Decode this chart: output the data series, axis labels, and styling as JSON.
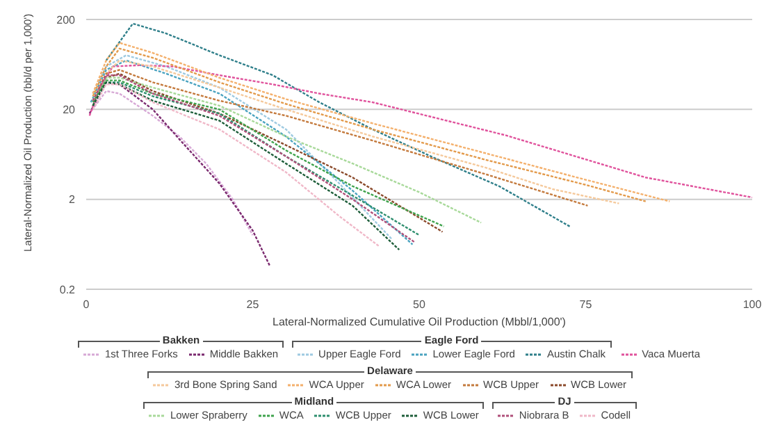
{
  "chart_data": {
    "type": "line",
    "xlabel": "Lateral-Normalized Cumulative Oil Production (Mbbl/1,000')",
    "ylabel": "Lateral-Normalized Oil Production (bbl/d per 1,000')",
    "annotations": [
      "Bakken",
      "Eagle Ford",
      "Delaware",
      "Midland",
      "DJ"
    ],
    "log": "y",
    "xlim": [
      0,
      100
    ],
    "xticks": [
      0,
      25,
      50,
      75,
      100
    ],
    "ylim": [
      0.2,
      200
    ],
    "yticks": [
      0.2,
      2,
      20,
      200
    ],
    "grid": "y",
    "legend": "bottom",
    "line_style": "dashed",
    "marker": "none",
    "series": [
      {
        "name": "1st Three Forks",
        "color": "#d7a9d6",
        "x": [
          0.5,
          3,
          5,
          10,
          14,
          18,
          22,
          25
        ],
        "values": [
          18,
          32,
          30,
          17,
          10,
          5,
          2,
          0.8
        ]
      },
      {
        "name": "Middle Bakken",
        "color": "#7b2a6f",
        "x": [
          0.5,
          3,
          5,
          10,
          14,
          20,
          25,
          27.6
        ],
        "values": [
          18,
          40,
          38,
          20,
          9.3,
          3,
          0.9,
          0.36
        ]
      },
      {
        "name": "Upper Eagle Ford",
        "color": "#9ecae1",
        "x": [
          1,
          3,
          6,
          12,
          20,
          30,
          38,
          45.9
        ],
        "values": [
          30,
          60,
          80,
          60,
          35,
          12,
          3,
          0.72
        ]
      },
      {
        "name": "Lower Eagle Ford",
        "color": "#4aa3c0",
        "x": [
          0.7,
          3,
          6,
          12,
          20,
          30,
          40,
          49
        ],
        "values": [
          24,
          55,
          70,
          50,
          30,
          10,
          2.5,
          0.63
        ]
      },
      {
        "name": "Austin Chalk",
        "color": "#2f7f8a",
        "x": [
          3,
          7,
          12,
          20,
          28,
          35,
          43,
          52,
          62,
          72.6
        ],
        "values": [
          70,
          180,
          140,
          80,
          48,
          24,
          12,
          5.9,
          2.8,
          1
        ]
      },
      {
        "name": "Vaca Muerta",
        "color": "#e0529c",
        "x": [
          0.5,
          2,
          4,
          8,
          13,
          20,
          28,
          35,
          43,
          63,
          84,
          100
        ],
        "values": [
          17,
          35,
          60,
          62,
          60,
          48,
          38,
          30,
          24,
          10.3,
          3.5,
          2.1
        ]
      },
      {
        "name": "3rd Bone Spring Sand",
        "color": "#f5c99b",
        "x": [
          1,
          3,
          5,
          10,
          20,
          30,
          43,
          60,
          70,
          80
        ],
        "values": [
          25,
          50,
          70,
          60,
          35,
          20,
          10,
          4.5,
          2.6,
          1.8
        ]
      },
      {
        "name": "WCA Upper",
        "color": "#f4b06c",
        "x": [
          1,
          3,
          5,
          10,
          20,
          30,
          43,
          60,
          75,
          87.6
        ],
        "values": [
          30,
          70,
          110,
          85,
          45,
          26,
          14,
          6.5,
          3.3,
          1.9
        ]
      },
      {
        "name": "WCA Lower",
        "color": "#e39a4b",
        "x": [
          1,
          3,
          5,
          10,
          20,
          30,
          43,
          60,
          75,
          84
        ],
        "values": [
          28,
          60,
          95,
          75,
          40,
          23,
          12,
          5.5,
          2.9,
          1.9
        ]
      },
      {
        "name": "WCB Upper",
        "color": "#c47a3d",
        "x": [
          1,
          3,
          5,
          10,
          20,
          30,
          43,
          60,
          75.3
        ],
        "values": [
          25,
          50,
          55,
          40,
          25,
          17,
          9,
          3.8,
          1.7
        ]
      },
      {
        "name": "WCB Lower",
        "color": "#8b4a2b",
        "x": [
          1,
          3,
          5,
          10,
          20,
          30,
          40,
          53.5
        ],
        "values": [
          22,
          45,
          50,
          32,
          18,
          8,
          3.5,
          0.87
        ]
      },
      {
        "name": "Lower Spraberry",
        "color": "#a8d99a",
        "x": [
          1,
          3,
          5,
          10,
          20,
          30,
          40,
          50,
          59.3
        ],
        "values": [
          25,
          45,
          45,
          35,
          22,
          10,
          5,
          2.4,
          1.1
        ]
      },
      {
        "name": "WCA",
        "color": "#3fa34d",
        "x": [
          1,
          3,
          5,
          10,
          20,
          30,
          40,
          53.7
        ],
        "values": [
          24,
          42,
          42,
          30,
          20,
          7,
          2.8,
          1
        ]
      },
      {
        "name": "WCB Upper",
        "color": "#2f8f6f",
        "x": [
          1,
          3,
          5,
          10,
          20,
          30,
          40,
          50
        ],
        "values": [
          22,
          40,
          40,
          28,
          18,
          6,
          2.2,
          0.8
        ]
      },
      {
        "name": "WCB Lower",
        "color": "#1e5e3a",
        "x": [
          1,
          3,
          5,
          10,
          20,
          30,
          40,
          47
        ],
        "values": [
          22,
          40,
          38,
          25,
          15,
          5,
          1.7,
          0.55
        ]
      },
      {
        "name": "Niobrara B",
        "color": "#b0507a",
        "x": [
          1,
          3,
          5,
          10,
          20,
          30,
          40,
          49.4
        ],
        "values": [
          25,
          48,
          48,
          30,
          17,
          6,
          2,
          0.66
        ]
      },
      {
        "name": "Codell",
        "color": "#f0b8c8",
        "x": [
          1,
          3,
          5,
          10,
          20,
          30,
          38,
          44
        ],
        "values": [
          20,
          38,
          38,
          24,
          12,
          4,
          1.3,
          0.6
        ]
      }
    ]
  }
}
